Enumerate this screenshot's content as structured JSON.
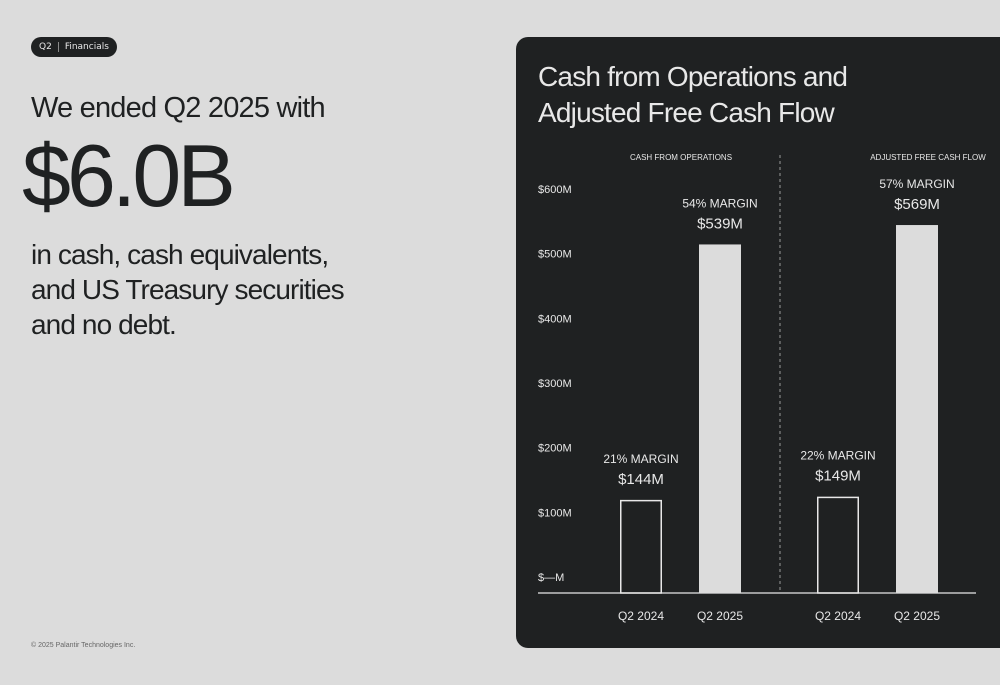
{
  "tag": {
    "quarter": "Q2",
    "section": "Financials"
  },
  "headline": {
    "lead": "We ended Q2 2025 with",
    "amount": "$6.0B",
    "line1": "in cash, cash equivalents,",
    "line2": "and US Treasury securities",
    "line3": "and no debt."
  },
  "footer": {
    "copyright": "© 2025 Palantir Technologies Inc."
  },
  "colors": {
    "page_bg": "#dcdcdc",
    "panel_bg": "#1f2122",
    "bar_fill": "#dcdcdc",
    "text_light": "#e8e8e8"
  },
  "chart_data": {
    "type": "bar",
    "title": "Cash from Operations and Adjusted Free Cash Flow",
    "title_lines": [
      "Cash from Operations and",
      "Adjusted Free Cash Flow"
    ],
    "ylim": [
      0,
      600
    ],
    "yticks": [
      {
        "value": 600,
        "label": "$600M"
      },
      {
        "value": 500,
        "label": "$500M"
      },
      {
        "value": 400,
        "label": "$400M"
      },
      {
        "value": 300,
        "label": "$300M"
      },
      {
        "value": 200,
        "label": "$200M"
      },
      {
        "value": 100,
        "label": "$100M"
      },
      {
        "value": 0,
        "label": "$—M"
      }
    ],
    "grid": false,
    "groups": [
      {
        "name": "CASH FROM OPERATIONS",
        "bars": [
          {
            "category": "Q2 2024",
            "value": 144,
            "value_label": "$144M",
            "margin_label": "21% MARGIN",
            "style": "outline"
          },
          {
            "category": "Q2 2025",
            "value": 539,
            "value_label": "$539M",
            "margin_label": "54% MARGIN",
            "style": "filled"
          }
        ]
      },
      {
        "name": "ADJUSTED FREE CASH FLOW",
        "bars": [
          {
            "category": "Q2 2024",
            "value": 149,
            "value_label": "$149M",
            "margin_label": "22% MARGIN",
            "style": "outline"
          },
          {
            "category": "Q2 2025",
            "value": 569,
            "value_label": "$569M",
            "margin_label": "57% MARGIN",
            "style": "filled"
          }
        ]
      }
    ]
  }
}
